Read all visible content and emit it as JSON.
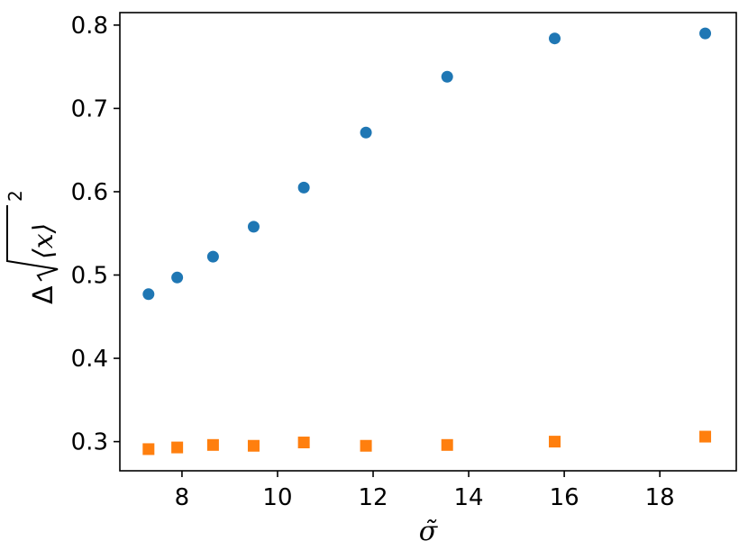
{
  "chart_data": {
    "type": "scatter",
    "xlabel": "σ̃",
    "ylabel": {
      "prefix": "Δ",
      "radicand": "⟨x⟩",
      "superscript": "2"
    },
    "xlim": [
      6.7,
      19.6
    ],
    "ylim": [
      0.265,
      0.815
    ],
    "xticks": [
      8,
      10,
      12,
      14,
      16,
      18
    ],
    "yticks": [
      0.3,
      0.4,
      0.5,
      0.6,
      0.7,
      0.8
    ],
    "xtick_labels": [
      "8",
      "10",
      "12",
      "14",
      "16",
      "18"
    ],
    "ytick_labels": [
      "0.3",
      "0.4",
      "0.5",
      "0.6",
      "0.7",
      "0.8"
    ],
    "grid": false,
    "legend": "none",
    "series": [
      {
        "marker": "circle",
        "color": "#1f77b4",
        "points": [
          {
            "x": 7.3,
            "y": 0.477
          },
          {
            "x": 7.9,
            "y": 0.497
          },
          {
            "x": 8.65,
            "y": 0.522
          },
          {
            "x": 9.5,
            "y": 0.558
          },
          {
            "x": 10.55,
            "y": 0.605
          },
          {
            "x": 11.85,
            "y": 0.671
          },
          {
            "x": 13.55,
            "y": 0.738
          },
          {
            "x": 15.8,
            "y": 0.784
          },
          {
            "x": 18.95,
            "y": 0.79
          }
        ]
      },
      {
        "marker": "square",
        "color": "#ff7f0e",
        "points": [
          {
            "x": 7.3,
            "y": 0.291
          },
          {
            "x": 7.9,
            "y": 0.293
          },
          {
            "x": 8.65,
            "y": 0.296
          },
          {
            "x": 9.5,
            "y": 0.295
          },
          {
            "x": 10.55,
            "y": 0.299
          },
          {
            "x": 11.85,
            "y": 0.295
          },
          {
            "x": 13.55,
            "y": 0.296
          },
          {
            "x": 15.8,
            "y": 0.3
          },
          {
            "x": 18.95,
            "y": 0.306
          }
        ]
      }
    ]
  }
}
